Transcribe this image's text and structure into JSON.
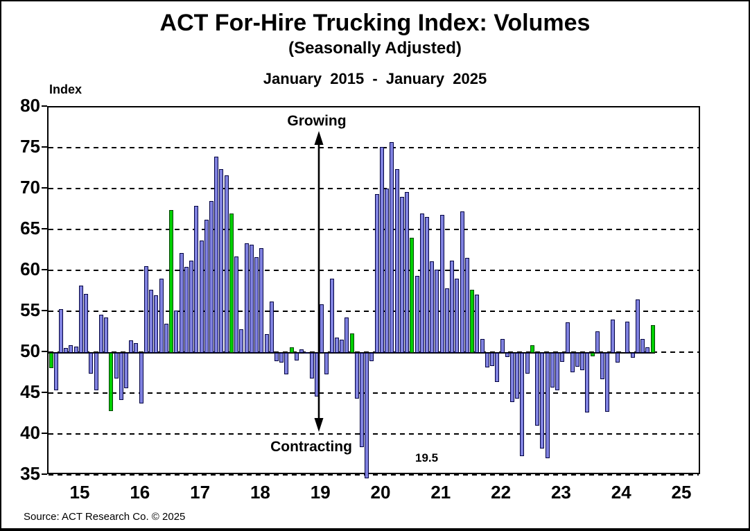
{
  "title": "ACT For-Hire Trucking Index: Volumes",
  "subtitle": "(Seasonally Adjusted)",
  "date_range": "January 2015 - January 2025",
  "axis": {
    "index_label": "Index"
  },
  "annotations": {
    "growing": "Growing",
    "contracting": "Contracting",
    "april_2020_value": "19.5"
  },
  "source": "Source: ACT Research Co. © 2025",
  "chart_data": {
    "type": "bar",
    "title": "ACT For-Hire Trucking Index: Volumes (Seasonally Adjusted)",
    "period": "January 2015 - January 2025",
    "frequency": "monthly",
    "baseline": 50,
    "ylim": [
      35,
      80
    ],
    "y_ticks": [
      35,
      40,
      45,
      50,
      55,
      60,
      65,
      70,
      75,
      80
    ],
    "x_tick_years": [
      "15",
      "16",
      "17",
      "18",
      "19",
      "20",
      "21",
      "22",
      "23",
      "24",
      "25"
    ],
    "grid": "dashed horizontal every 5",
    "legend": "none",
    "bar_color": "#8082E0",
    "bar_border": "#000040",
    "january_color": "#00CF00",
    "january_border": "#064006",
    "note": "January bars are green; values below 50 indicate contraction; April 2020 bar (19.5) extends below the visible axis",
    "off_scale_point": {
      "month": "April 2020",
      "value": 19.5
    },
    "values": [
      48.1,
      45.4,
      55.3,
      50.6,
      50.9,
      50.8,
      58.2,
      57.2,
      47.5,
      45.4,
      54.7,
      54.3,
      42.9,
      46.9,
      44.2,
      45.7,
      51.5,
      51.2,
      43.8,
      60.6,
      57.7,
      57.0,
      59.1,
      53.6,
      67.5,
      55.2,
      62.2,
      60.5,
      61.3,
      68.0,
      63.7,
      66.3,
      68.6,
      74.0,
      72.5,
      71.7,
      67.0,
      61.8,
      52.9,
      63.4,
      63.2,
      61.7,
      62.8,
      52.3,
      56.3,
      49.0,
      48.8,
      47.4,
      50.7,
      49.1,
      50.4,
      50.1,
      46.9,
      44.7,
      55.9,
      47.4,
      59.1,
      51.9,
      51.6,
      54.3,
      52.4,
      44.4,
      38.5,
      19.5,
      49.0,
      69.4,
      75.2,
      70.1,
      75.8,
      72.5,
      69.1,
      69.7,
      64.1,
      59.4,
      67.0,
      66.6,
      61.2,
      60.2,
      66.9,
      57.9,
      61.3,
      59.1,
      67.3,
      61.6,
      57.7,
      57.1,
      51.7,
      48.2,
      48.4,
      46.4,
      51.7,
      49.5,
      44.0,
      44.4,
      37.4,
      47.5,
      50.9,
      41.1,
      38.3,
      37.1,
      45.8,
      45.4,
      48.9,
      53.7,
      47.6,
      48.3,
      47.9,
      42.7,
      49.6,
      52.6,
      46.8,
      42.8,
      54.1,
      48.8,
      50.0,
      53.8,
      49.4,
      56.5,
      51.7,
      50.7,
      53.4
    ]
  }
}
